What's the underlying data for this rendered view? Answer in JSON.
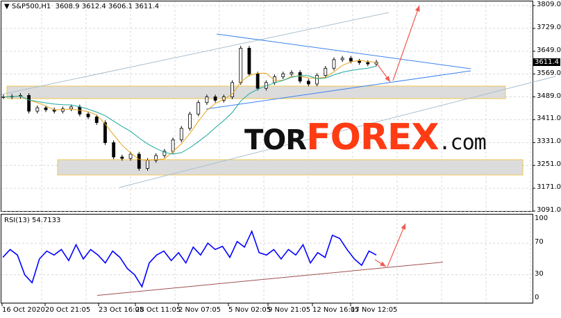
{
  "header": {
    "symbol": "S&P500,H1",
    "open": "3608.9",
    "high": "3612.4",
    "low": "3606.1",
    "close": "3611.4"
  },
  "last_price": "3611.4",
  "rsi": {
    "label": "RSI(13) 54.7133"
  },
  "logo": {
    "tor": "TOR",
    "forex": "FOREX",
    "com": ".com"
  },
  "colors": {
    "candles": "#000000",
    "ma_fast": "#e8a317",
    "ma_slow": "#18a89a",
    "rsi_line": "#0000ff",
    "trend_blue": "#3b82f0",
    "channel": "#a9bfcf",
    "arrow": "#f05a50",
    "rsi_trend": "#a05050",
    "zone": "#d9d9d9",
    "zone_border": "#f0c040"
  },
  "chart_data": [
    {
      "type": "candlestick",
      "title": "S&P500,H1",
      "ylim": [
        3091,
        3809
      ],
      "y_ticks": [
        "3809.0",
        "3729.0",
        "3649.0",
        "3569.0",
        "3489.0",
        "3411.0",
        "3331.0",
        "3251.0",
        "3171.0",
        "3091.0"
      ],
      "x_ticks": [
        "16 Oct 2020",
        "20 Oct 21:05",
        "23 Oct 16:05",
        "28 Oct 11:05",
        "2 Nov 07:05",
        "5 Nov 02:05",
        "9 Nov 21:05",
        "12 Nov 16:05",
        "17 Nov 12:05"
      ],
      "closes": [
        3490,
        3492,
        3495,
        3440,
        3452,
        3445,
        3440,
        3448,
        3455,
        3430,
        3420,
        3400,
        3330,
        3280,
        3275,
        3290,
        3240,
        3268,
        3285,
        3300,
        3340,
        3380,
        3430,
        3470,
        3490,
        3478,
        3490,
        3540,
        3660,
        3570,
        3520,
        3540,
        3560,
        3570,
        3575,
        3545,
        3535,
        3565,
        3590,
        3620,
        3625,
        3615,
        3610,
        3605,
        3611.4
      ],
      "grid": true
    },
    {
      "type": "line",
      "title": "RSI(13) 54.7133",
      "ylim": [
        0,
        100
      ],
      "y_ticks": [
        "100",
        "70",
        "30",
        "0"
      ],
      "values": [
        52,
        62,
        55,
        30,
        20,
        50,
        60,
        55,
        62,
        48,
        68,
        50,
        62,
        55,
        45,
        60,
        52,
        38,
        30,
        15,
        45,
        55,
        60,
        48,
        58,
        45,
        65,
        55,
        70,
        62,
        66,
        52,
        72,
        65,
        85,
        58,
        55,
        62,
        50,
        62,
        55,
        68,
        45,
        58,
        52,
        80,
        76,
        62,
        50,
        42,
        60,
        55
      ]
    }
  ]
}
